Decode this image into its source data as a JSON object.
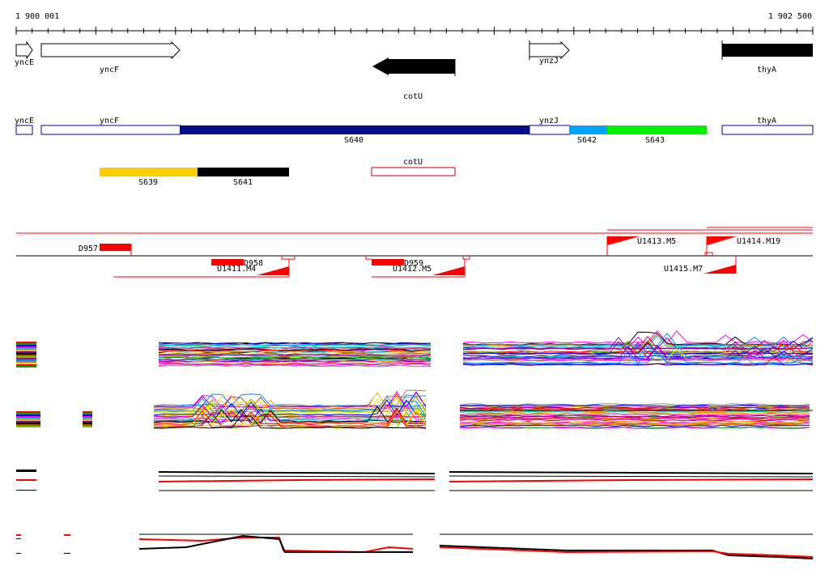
{
  "coords": {
    "start": "1 900 001",
    "end": "1 902 500"
  },
  "genes": [
    {
      "name": "yncE",
      "strand": "+",
      "fill": "white"
    },
    {
      "name": "yncF",
      "strand": "+",
      "fill": "white"
    },
    {
      "name": "cotU",
      "strand": "-",
      "fill": "black"
    },
    {
      "name": "ynzJ",
      "strand": "+",
      "fill": "white"
    },
    {
      "name": "thyA",
      "strand": "+",
      "fill": "black"
    }
  ],
  "transcript_labels": {
    "yncE": "yncE",
    "yncF": "yncF",
    "ynzJ": "ynzJ",
    "thyA": "thyA",
    "cotU": "cotU",
    "S640": "S640",
    "S642": "S642",
    "S643": "S643",
    "S639": "S639",
    "S641": "S641"
  },
  "segment_colors": {
    "S640": "#000e8c",
    "S642": "#00a2ff",
    "S643": "#00f000",
    "S639": "#ffcc00",
    "S641": "#000000",
    "outline_blue": "#0000aa",
    "cotU_outline": "#cc0000"
  },
  "features": {
    "D957": "D957",
    "D958": "D958",
    "D959": "D959",
    "U1411": "U1411.M4",
    "U1412": "U1412.M5",
    "U1413": "U1413.M5",
    "U1414": "U1414.M19",
    "U1415": "U1415.M7"
  },
  "accent": "#ff0000"
}
